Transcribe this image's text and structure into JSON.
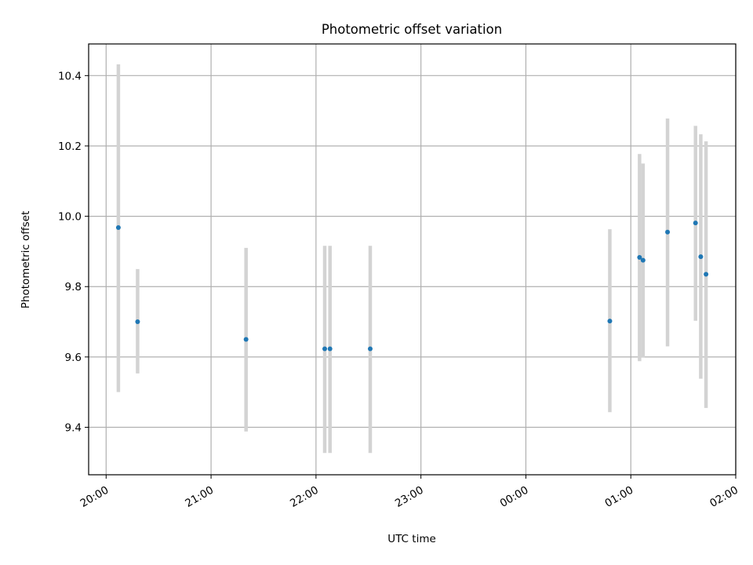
{
  "chart_data": {
    "type": "scatter",
    "title": "Photometric offset variation",
    "xlabel": "UTC time",
    "ylabel": "Photometric offset",
    "x_tick_labels": [
      "20:00",
      "21:00",
      "22:00",
      "23:00",
      "00:00",
      "01:00",
      "02:00"
    ],
    "y_tick_labels": [
      "9.4",
      "9.6",
      "9.8",
      "10.0",
      "10.2",
      "10.4"
    ],
    "y_ticks": [
      9.4,
      9.6,
      9.8,
      10.0,
      10.2,
      10.4
    ],
    "ylim": [
      9.265,
      10.49
    ],
    "xlim": [
      "19:50",
      "02:00"
    ],
    "grid": true,
    "colors": {
      "points": "#1f77b4",
      "error_bars": "#d3d3d3",
      "grid": "#b0b0b0"
    },
    "points": [
      {
        "time": "20:07",
        "y": 9.968,
        "y_low": 9.5,
        "y_high": 10.432
      },
      {
        "time": "20:18",
        "y": 9.7,
        "y_low": 9.553,
        "y_high": 9.85
      },
      {
        "time": "21:20",
        "y": 9.65,
        "y_low": 9.388,
        "y_high": 9.91
      },
      {
        "time": "22:05",
        "y": 9.623,
        "y_low": 9.327,
        "y_high": 9.916
      },
      {
        "time": "22:08",
        "y": 9.623,
        "y_low": 9.327,
        "y_high": 9.916
      },
      {
        "time": "22:31",
        "y": 9.623,
        "y_low": 9.327,
        "y_high": 9.916
      },
      {
        "time": "00:48",
        "y": 9.702,
        "y_low": 9.443,
        "y_high": 9.963
      },
      {
        "time": "01:05",
        "y": 9.883,
        "y_low": 9.588,
        "y_high": 10.177
      },
      {
        "time": "01:07",
        "y": 9.875,
        "y_low": 9.598,
        "y_high": 10.15
      },
      {
        "time": "01:21",
        "y": 9.955,
        "y_low": 9.63,
        "y_high": 10.278
      },
      {
        "time": "01:37",
        "y": 9.981,
        "y_low": 9.703,
        "y_high": 10.257
      },
      {
        "time": "01:40",
        "y": 9.885,
        "y_low": 9.538,
        "y_high": 10.233
      },
      {
        "time": "01:43",
        "y": 9.835,
        "y_low": 9.455,
        "y_high": 10.213
      }
    ]
  }
}
